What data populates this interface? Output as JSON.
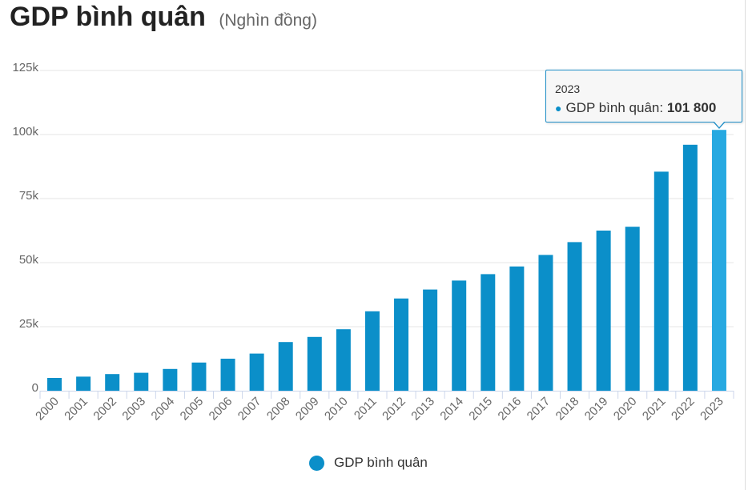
{
  "chart_data": {
    "type": "bar",
    "title": "GDP bình quân",
    "subtitle": "(Nghìn đồng)",
    "categories": [
      "2000",
      "2001",
      "2002",
      "2003",
      "2004",
      "2005",
      "2006",
      "2007",
      "2008",
      "2009",
      "2010",
      "2011",
      "2012",
      "2013",
      "2014",
      "2015",
      "2016",
      "2017",
      "2018",
      "2019",
      "2020",
      "2021",
      "2022",
      "2023"
    ],
    "series": [
      {
        "name": "GDP bình quân",
        "values": [
          5000,
          5500,
          6500,
          7000,
          8500,
          11000,
          12500,
          14500,
          19000,
          21000,
          24000,
          31000,
          36000,
          39500,
          43000,
          45500,
          48500,
          53000,
          58000,
          62500,
          64000,
          85500,
          96000,
          101800
        ]
      }
    ],
    "ylim": [
      0,
      125000
    ],
    "y_ticks": [
      0,
      25000,
      50000,
      75000,
      100000,
      125000
    ],
    "y_tick_labels": [
      "0",
      "25k",
      "50k",
      "75k",
      "100k",
      "125k"
    ],
    "grid": true,
    "legend": "bottom-center",
    "colors": {
      "bar": "#0b8fc9",
      "bar_highlight": "#27a9e1",
      "grid": "#e6e6e6",
      "axis": "#ccd6eb"
    }
  },
  "tooltip": {
    "header": "2023",
    "series_name": "GDP bình quân",
    "separator": ":",
    "value": "101 800"
  }
}
